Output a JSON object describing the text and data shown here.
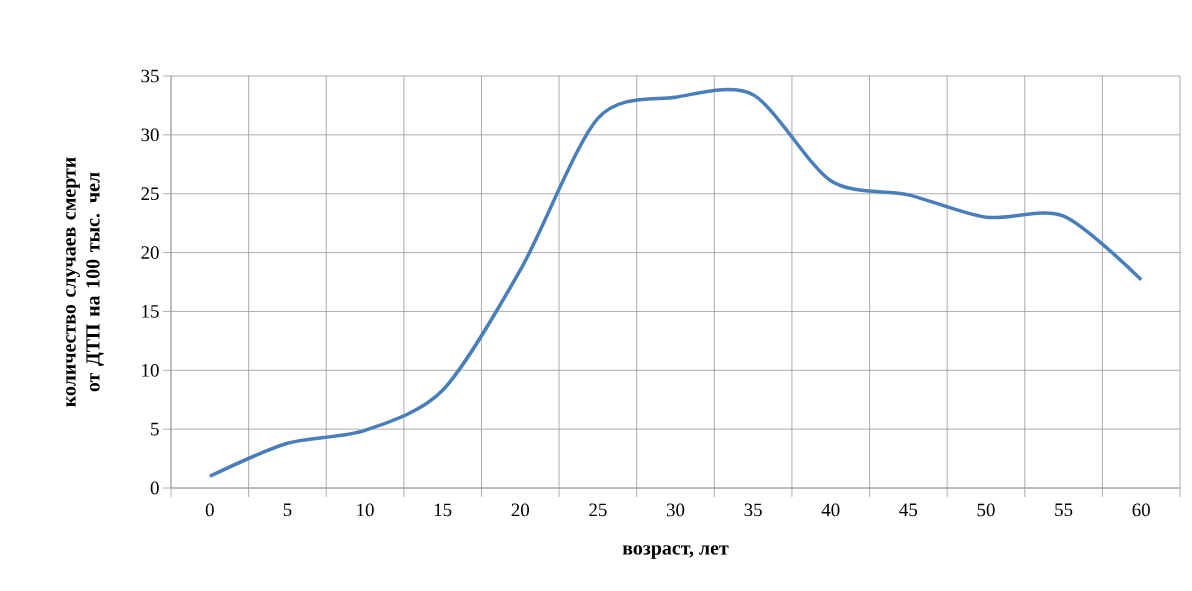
{
  "chart_data": {
    "type": "line",
    "xlabel": "возраст, лет",
    "ylabel": "количество случаев смерти от ДТП на 100 тыс. чел",
    "categories": [
      "0",
      "5",
      "10",
      "15",
      "20",
      "25",
      "30",
      "35",
      "40",
      "45",
      "50",
      "55",
      "60"
    ],
    "values": [
      1.0,
      3.8,
      4.9,
      8.3,
      18.5,
      31.4,
      33.2,
      33.4,
      26.1,
      24.9,
      23.0,
      23.1,
      17.7
    ],
    "color": "#4a7ebb",
    "ylim": [
      0,
      35
    ],
    "yticks": [
      0,
      5,
      10,
      15,
      20,
      25,
      30,
      35
    ],
    "grid": true
  }
}
